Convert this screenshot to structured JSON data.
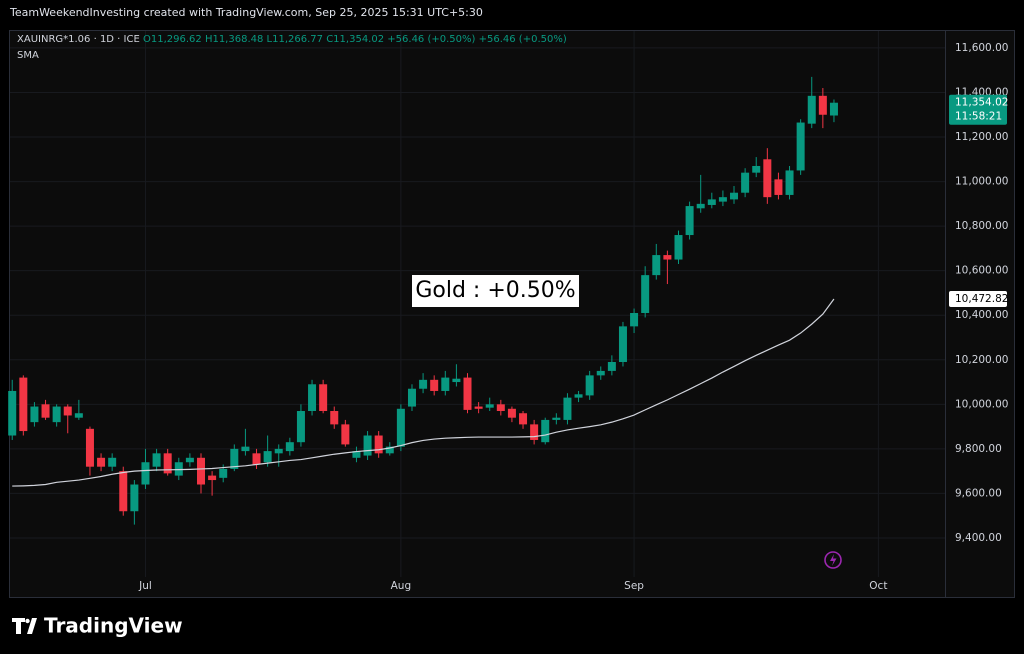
{
  "chart_data": {
    "type": "candlestick",
    "credit": "TeamWeekendInvesting created with TradingView.com, Sep 25, 2025 15:31 UTC+5:30",
    "symbol": "XAUINRG*1.06 · 1D · ICE",
    "ohlc_labels": [
      "O11,296.62",
      "H11,368.48",
      "L11,266.77",
      "C11,354.02"
    ],
    "change_labels": [
      "+56.46 (+0.50%)",
      "+56.46 (+0.50%)"
    ],
    "indicator": "SMA",
    "annotation": "Gold : +0.50%",
    "logo": "TradingView",
    "last_price_label": "11,354.02",
    "countdown": "11:58:21",
    "sma_label": "10,472.82",
    "up_color": "#089981",
    "down_color": "#f23645",
    "sma_color": "#d1d4dc",
    "grid": true,
    "xlim": [
      -0.2,
      84
    ],
    "xticks": [
      {
        "value": 12,
        "label": "Jul"
      },
      {
        "value": 35,
        "label": "Aug"
      },
      {
        "value": 56,
        "label": "Sep"
      },
      {
        "value": 78,
        "label": "Oct"
      }
    ],
    "ylim": [
      9135,
      11676
    ],
    "yticks": [
      {
        "value": 9400,
        "label": "9,400.00"
      },
      {
        "value": 9600,
        "label": "9,600.00"
      },
      {
        "value": 9800,
        "label": "9,800.00"
      },
      {
        "value": 10000,
        "label": "10,000.00"
      },
      {
        "value": 10200,
        "label": "10,200.00"
      },
      {
        "value": 10400,
        "label": "10,400.00"
      },
      {
        "value": 10600,
        "label": "10,600.00"
      },
      {
        "value": 10800,
        "label": "10,800.00"
      },
      {
        "value": 11000,
        "label": "11,000.00"
      },
      {
        "value": 11200,
        "label": "11,200.00"
      },
      {
        "value": 11400,
        "label": "11,400.00"
      },
      {
        "value": 11600,
        "label": "11,600.00"
      }
    ],
    "open": [
      9860,
      10120,
      9920,
      10000,
      9920,
      9990,
      9940,
      9890,
      9760,
      9720,
      9700,
      9520,
      9640,
      9720,
      9780,
      9680,
      9740,
      9760,
      9680,
      9670,
      9710,
      9790,
      9780,
      9740,
      9780,
      9790,
      9830,
      9970,
      10090,
      9970,
      9910,
      9760,
      9770,
      9860,
      9780,
      9810,
      9990,
      10070,
      10110,
      10060,
      10100,
      10120,
      9990,
      9985,
      10000,
      9980,
      9960,
      9910,
      9830,
      9930,
      9930,
      10030,
      10040,
      10130,
      10150,
      10190,
      10350,
      10410,
      10580,
      10670,
      10650,
      10760,
      10880,
      10895,
      10910,
      10920,
      10950,
      11040,
      11100,
      11010,
      10940,
      11050,
      11260,
      11385,
      11296.62
    ],
    "high": [
      10110,
      10130,
      10010,
      10020,
      10000,
      10000,
      10020,
      9900,
      9780,
      9780,
      9720,
      9660,
      9800,
      9800,
      9800,
      9760,
      9780,
      9780,
      9700,
      9730,
      9820,
      9890,
      9800,
      9860,
      9820,
      9850,
      10000,
      10110,
      10110,
      9990,
      9930,
      9810,
      9880,
      9880,
      9830,
      10000,
      10090,
      10140,
      10130,
      10150,
      10180,
      10140,
      10010,
      10030,
      10020,
      9990,
      9970,
      9930,
      9940,
      9960,
      10050,
      10060,
      10150,
      10170,
      10220,
      10370,
      10430,
      10620,
      10720,
      10690,
      10780,
      10910,
      11030,
      10950,
      10960,
      10980,
      11060,
      11110,
      11150,
      11040,
      11070,
      11280,
      11470,
      11420,
      11368.48
    ],
    "low": [
      9840,
      9860,
      9900,
      9930,
      9900,
      9870,
      9930,
      9680,
      9700,
      9700,
      9500,
      9460,
      9620,
      9700,
      9680,
      9660,
      9720,
      9600,
      9590,
      9650,
      9700,
      9770,
      9710,
      9720,
      9720,
      9770,
      9810,
      9950,
      9960,
      9890,
      9810,
      9740,
      9750,
      9760,
      9770,
      9790,
      9970,
      10050,
      10040,
      10040,
      10080,
      9960,
      9960,
      9970,
      9950,
      9920,
      9890,
      9820,
      9820,
      9910,
      9910,
      10010,
      10020,
      10110,
      10130,
      10170,
      10320,
      10390,
      10560,
      10540,
      10630,
      10740,
      10860,
      10880,
      10890,
      10900,
      10930,
      11020,
      10900,
      10920,
      10920,
      11030,
      11240,
      11240,
      11266.77
    ],
    "close": [
      10060,
      9880,
      9990,
      9940,
      9990,
      9950,
      9960,
      9720,
      9720,
      9760,
      9520,
      9640,
      9740,
      9780,
      9690,
      9740,
      9760,
      9640,
      9660,
      9710,
      9800,
      9810,
      9730,
      9790,
      9800,
      9830,
      9970,
      10090,
      9970,
      9910,
      9820,
      9790,
      9860,
      9780,
      9810,
      9980,
      10070,
      10110,
      10060,
      10120,
      10115,
      9975,
      9980,
      10000,
      9970,
      9940,
      9910,
      9840,
      9930,
      9940,
      10030,
      10045,
      10130,
      10150,
      10190,
      10350,
      10410,
      10580,
      10670,
      10650,
      10760,
      10890,
      10900,
      10920,
      10930,
      10950,
      11040,
      11070,
      10930,
      10940,
      11050,
      11265,
      11385,
      11300,
      11354.02
    ],
    "sma": [
      9633,
      9634,
      9636,
      9640,
      9650,
      9655,
      9660,
      9668,
      9676,
      9686,
      9694,
      9700,
      9703,
      9705,
      9706,
      9707,
      9708,
      9710,
      9712,
      9716,
      9720,
      9724,
      9730,
      9736,
      9742,
      9748,
      9752,
      9760,
      9768,
      9776,
      9782,
      9788,
      9792,
      9796,
      9804,
      9815,
      9828,
      9838,
      9844,
      9848,
      9850,
      9852,
      9853,
      9853,
      9853,
      9853,
      9854,
      9855,
      9862,
      9875,
      9885,
      9893,
      9900,
      9908,
      9920,
      9935,
      9952,
      9975,
      9998,
      10020,
      10044,
      10068,
      10093,
      10118,
      10145,
      10170,
      10196,
      10220,
      10243,
      10266,
      10288,
      10320,
      10360,
      10405,
      10472.82
    ]
  }
}
